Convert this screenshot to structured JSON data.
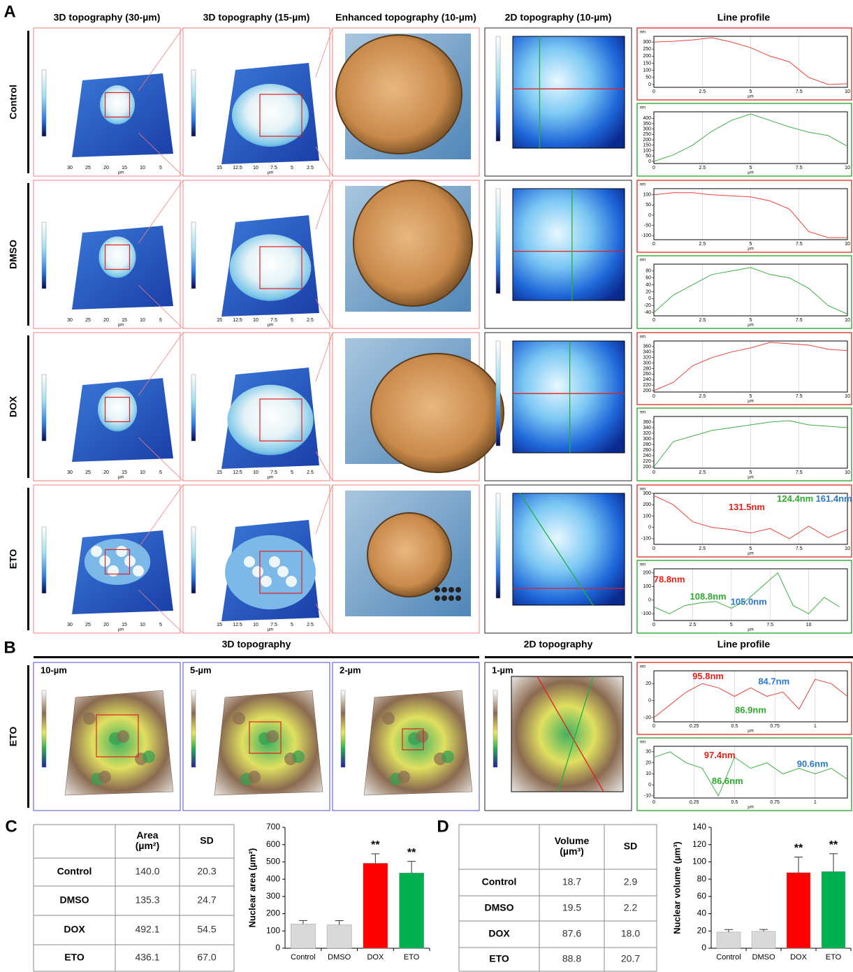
{
  "panel_a": {
    "letter": "A",
    "columns": [
      "3D topography (30-µm)",
      "3D topography (15-µm)",
      "Enhanced topography (10-µm)",
      "2D topography (10-µm)",
      "Line profile"
    ],
    "rows": [
      "Control",
      "DMSO",
      "DOX",
      "ETO"
    ],
    "scale_30": [
      "30",
      "25",
      "20",
      "15",
      "10",
      "5"
    ],
    "scale_15": [
      "15",
      "12.5",
      "10",
      "7.5",
      "5",
      "2.5"
    ],
    "unit": "µm",
    "profiles": [
      [
        {
          "color": "#e8443a",
          "xlabel": "µm",
          "ylabel": "nm",
          "x": [
            0,
            1,
            2,
            3,
            4,
            5,
            6,
            7,
            8,
            9,
            10
          ],
          "values": [
            300,
            305,
            315,
            330,
            300,
            260,
            200,
            160,
            50,
            0,
            5
          ],
          "xlim": [
            0,
            10
          ],
          "ylim": [
            -20,
            340
          ],
          "xticks": [
            0,
            2.5,
            5,
            7.5,
            10
          ],
          "yticks": [
            0,
            50,
            100,
            150,
            200,
            250,
            300
          ],
          "annotations": []
        },
        {
          "color": "#3cb043",
          "xlabel": "µm",
          "ylabel": "nm",
          "x": [
            0,
            1,
            2,
            3,
            4,
            5,
            6,
            7,
            8,
            9,
            10
          ],
          "values": [
            0,
            60,
            150,
            280,
            380,
            440,
            380,
            320,
            270,
            240,
            140
          ],
          "xlim": [
            0,
            10
          ],
          "ylim": [
            -20,
            460
          ],
          "xticks": [
            0,
            2.5,
            5,
            7.5,
            10
          ],
          "yticks": [
            0,
            50,
            100,
            150,
            200,
            250,
            300,
            350,
            400
          ],
          "annotations": []
        }
      ],
      [
        {
          "color": "#e8443a",
          "xlabel": "µm",
          "ylabel": "nm",
          "x": [
            0,
            1,
            2,
            3,
            4,
            5,
            6,
            7,
            8,
            9,
            10
          ],
          "values": [
            100,
            110,
            110,
            100,
            95,
            90,
            70,
            30,
            -80,
            -110,
            -110
          ],
          "xlim": [
            0,
            10
          ],
          "ylim": [
            -120,
            130
          ],
          "xticks": [
            0,
            2.5,
            5,
            7.5,
            10
          ],
          "yticks": [
            -100,
            -50,
            0,
            50,
            100
          ],
          "annotations": []
        },
        {
          "color": "#3cb043",
          "xlabel": "µm",
          "ylabel": "nm",
          "x": [
            0,
            1,
            2,
            3,
            4,
            5,
            6,
            7,
            8,
            9,
            10
          ],
          "values": [
            -40,
            10,
            40,
            70,
            80,
            90,
            70,
            60,
            30,
            -20,
            -45
          ],
          "xlim": [
            0,
            10
          ],
          "ylim": [
            -50,
            100
          ],
          "xticks": [
            0,
            2.5,
            5,
            7.5,
            10
          ],
          "yticks": [
            -40,
            -20,
            0,
            20,
            40,
            60,
            80
          ],
          "annotations": []
        }
      ],
      [
        {
          "color": "#e8443a",
          "xlabel": "µm",
          "ylabel": "nm",
          "x": [
            0,
            1,
            2,
            3,
            4,
            5,
            6,
            7,
            8,
            9,
            10
          ],
          "values": [
            200,
            230,
            290,
            320,
            340,
            355,
            375,
            370,
            365,
            350,
            345
          ],
          "xlim": [
            0,
            10
          ],
          "ylim": [
            195,
            380
          ],
          "xticks": [
            0,
            2.5,
            5,
            7.5,
            10
          ],
          "yticks": [
            200,
            220,
            240,
            260,
            280,
            300,
            320,
            340,
            360
          ],
          "annotations": []
        },
        {
          "color": "#3cb043",
          "xlabel": "µm",
          "ylabel": "nm",
          "x": [
            0,
            1,
            2,
            3,
            4,
            5,
            6,
            7,
            8,
            9,
            10
          ],
          "values": [
            200,
            290,
            310,
            330,
            340,
            350,
            360,
            365,
            350,
            345,
            340
          ],
          "xlim": [
            0,
            10
          ],
          "ylim": [
            195,
            380
          ],
          "xticks": [
            0,
            2.5,
            5,
            7.5,
            10
          ],
          "yticks": [
            200,
            220,
            240,
            260,
            280,
            300,
            320,
            340,
            360
          ],
          "annotations": []
        }
      ],
      [
        {
          "color": "#e8443a",
          "xlabel": "µm",
          "ylabel": "nm",
          "x": [
            0,
            1,
            2,
            3,
            4,
            5,
            6,
            7,
            8,
            9,
            10
          ],
          "values": [
            280,
            200,
            50,
            0,
            -20,
            -50,
            -10,
            -100,
            10,
            -90,
            -20
          ],
          "xlim": [
            0,
            10
          ],
          "ylim": [
            -150,
            300
          ],
          "xticks": [
            0,
            2.5,
            5,
            7.5,
            10
          ],
          "yticks": [
            -100,
            0,
            100,
            200,
            300
          ],
          "annotations": [
            {
              "text": "131.5nm",
              "color": "#e8201a"
            },
            {
              "text": "124.4nm",
              "color": "#2eaa2e"
            },
            {
              "text": "161.4nm",
              "color": "#2a78c8"
            }
          ]
        },
        {
          "color": "#3cb043",
          "xlabel": "µm",
          "ylabel": "nm",
          "x": [
            0,
            1,
            2,
            3,
            4,
            5,
            6,
            7,
            8,
            9,
            10,
            11,
            12
          ],
          "values": [
            -50,
            -100,
            -40,
            -20,
            -10,
            -60,
            0,
            100,
            200,
            -40,
            -100,
            20,
            -50
          ],
          "xlim": [
            0,
            12.5
          ],
          "ylim": [
            -150,
            230
          ],
          "xticks": [
            0,
            2.5,
            5,
            7.5,
            10
          ],
          "yticks": [
            -100,
            0,
            100,
            200
          ],
          "annotations": [
            {
              "text": "78.8nm",
              "color": "#e8201a"
            },
            {
              "text": "108.8nm",
              "color": "#2eaa2e"
            },
            {
              "text": "105.0nm",
              "color": "#2a78c8"
            }
          ]
        }
      ]
    ]
  },
  "panel_b": {
    "letter": "B",
    "headers": [
      "3D topography",
      "2D topography",
      "Line profile"
    ],
    "row": "ETO",
    "scales": [
      "10-µm",
      "5-µm",
      "2-µm",
      "1-µm"
    ],
    "profiles": [
      {
        "color": "#e8443a",
        "xlabel": "µm",
        "ylabel": "nm",
        "x": [
          0,
          0.1,
          0.2,
          0.3,
          0.4,
          0.5,
          0.6,
          0.7,
          0.8,
          0.9,
          1,
          1.1,
          1.2
        ],
        "values": [
          -20,
          -5,
          10,
          20,
          15,
          5,
          15,
          5,
          10,
          -10,
          25,
          20,
          5
        ],
        "xlim": [
          0,
          1.2
        ],
        "ylim": [
          -25,
          35
        ],
        "xticks": [
          0,
          0.25,
          0.5,
          0.75,
          1
        ],
        "yticks": [
          -20,
          0,
          20
        ],
        "annotations": [
          {
            "text": "95.8nm",
            "color": "#e8201a"
          },
          {
            "text": "84.7nm",
            "color": "#2a78c8"
          },
          {
            "text": "86.9nm",
            "color": "#2eaa2e"
          }
        ]
      },
      {
        "color": "#3cb043",
        "xlabel": "µm",
        "ylabel": "nm",
        "x": [
          0,
          0.1,
          0.2,
          0.3,
          0.4,
          0.5,
          0.6,
          0.7,
          0.8,
          0.9,
          1,
          1.1,
          1.2
        ],
        "values": [
          25,
          30,
          20,
          15,
          -10,
          25,
          15,
          20,
          10,
          15,
          10,
          15,
          5
        ],
        "xlim": [
          0,
          1.2
        ],
        "ylim": [
          -12,
          35
        ],
        "xticks": [
          0,
          0.25,
          0.5,
          0.75,
          1
        ],
        "yticks": [
          -10,
          0,
          10,
          20,
          30
        ],
        "annotations": [
          {
            "text": "97.4nm",
            "color": "#e8201a"
          },
          {
            "text": "86.6nm",
            "color": "#2eaa2e"
          },
          {
            "text": "90.6nm",
            "color": "#2a78c8"
          }
        ]
      }
    ]
  },
  "panel_c": {
    "letter": "C",
    "table": {
      "header": [
        [
          "Area",
          "(µm²)"
        ],
        [
          "SD"
        ]
      ],
      "rows": [
        [
          "Control",
          "140.0",
          "20.3"
        ],
        [
          "DMSO",
          "135.3",
          "24.7"
        ],
        [
          "DOX",
          "492.1",
          "54.5"
        ],
        [
          "ETO",
          "436.1",
          "67.0"
        ]
      ]
    },
    "chart": {
      "type": "bar",
      "ylabel": "Nuclear area (µm²)",
      "categories": [
        "Control",
        "DMSO",
        "DOX",
        "ETO"
      ],
      "values": [
        140.0,
        135.3,
        492.1,
        436.1
      ],
      "errors": [
        20.3,
        24.7,
        54.5,
        67.0
      ],
      "colors": [
        "#d9d9d9",
        "#d9d9d9",
        "#ff0000",
        "#00b050"
      ],
      "significance": [
        null,
        null,
        "**",
        "**"
      ],
      "ylim": [
        0,
        700
      ],
      "yticks": [
        0,
        100,
        200,
        300,
        400,
        500,
        600,
        700
      ]
    }
  },
  "panel_d": {
    "letter": "D",
    "table": {
      "header": [
        [
          "Volume",
          "(µm³)"
        ],
        [
          "SD"
        ]
      ],
      "rows": [
        [
          "Control",
          "18.7",
          "2.9"
        ],
        [
          "DMSO",
          "19.5",
          "2.2"
        ],
        [
          "DOX",
          "87.6",
          "18.0"
        ],
        [
          "ETO",
          "88.8",
          "20.7"
        ]
      ]
    },
    "chart": {
      "type": "bar",
      "ylabel": "Nuclear volume (µm³)",
      "categories": [
        "Control",
        "DMSO",
        "DOX",
        "ETO"
      ],
      "values": [
        18.7,
        19.5,
        87.6,
        88.8
      ],
      "errors": [
        2.9,
        2.2,
        18.0,
        20.7
      ],
      "colors": [
        "#d9d9d9",
        "#d9d9d9",
        "#ff0000",
        "#00b050"
      ],
      "significance": [
        null,
        null,
        "**",
        "**"
      ],
      "ylim": [
        0,
        140
      ],
      "yticks": [
        0,
        20,
        40,
        60,
        80,
        100,
        120,
        140
      ]
    }
  }
}
